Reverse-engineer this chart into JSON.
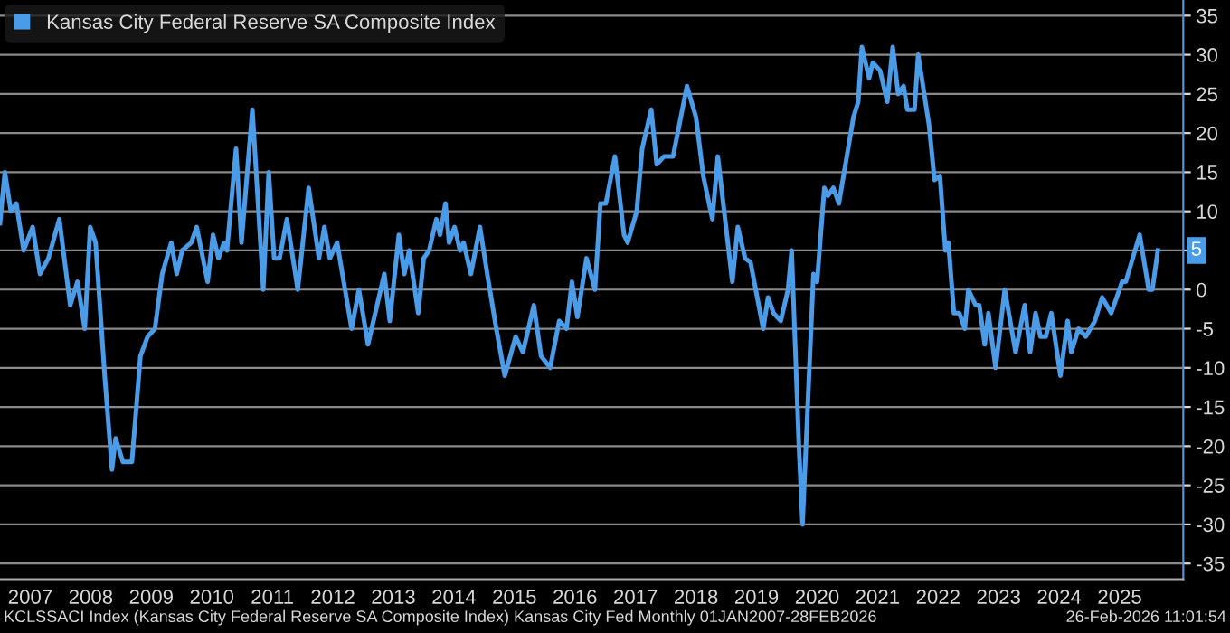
{
  "chart_data": {
    "type": "line",
    "x": [
      2007.0,
      2007.08,
      2007.18,
      2007.27,
      2007.39,
      2007.54,
      2007.66,
      2007.8,
      2007.98,
      2008.16,
      2008.28,
      2008.4,
      2008.49,
      2008.58,
      2008.73,
      2008.85,
      2008.91,
      2009.03,
      2009.18,
      2009.32,
      2009.44,
      2009.56,
      2009.68,
      2009.83,
      2009.92,
      2010.01,
      2010.16,
      2010.25,
      2010.43,
      2010.52,
      2010.61,
      2010.7,
      2010.75,
      2010.9,
      2010.99,
      2011.17,
      2011.35,
      2011.44,
      2011.53,
      2011.62,
      2011.74,
      2011.92,
      2012.1,
      2012.27,
      2012.36,
      2012.45,
      2012.57,
      2012.81,
      2012.93,
      2013.08,
      2013.23,
      2013.35,
      2013.44,
      2013.59,
      2013.68,
      2013.76,
      2013.91,
      2014.0,
      2014.09,
      2014.21,
      2014.27,
      2014.36,
      2014.42,
      2014.51,
      2014.6,
      2014.66,
      2014.78,
      2014.93,
      2015.05,
      2015.2,
      2015.34,
      2015.52,
      2015.64,
      2015.82,
      2015.94,
      2016.09,
      2016.24,
      2016.36,
      2016.45,
      2016.54,
      2016.69,
      2016.83,
      2016.92,
      2017.01,
      2017.16,
      2017.31,
      2017.37,
      2017.52,
      2017.61,
      2017.76,
      2017.85,
      2017.97,
      2018.12,
      2018.35,
      2018.5,
      2018.62,
      2018.77,
      2018.86,
      2018.98,
      2019.1,
      2019.19,
      2019.31,
      2019.4,
      2019.61,
      2019.69,
      2019.78,
      2019.9,
      2020.02,
      2020.08,
      2020.2,
      2020.26,
      2020.44,
      2020.5,
      2020.62,
      2020.68,
      2020.77,
      2020.86,
      2021.1,
      2021.18,
      2021.24,
      2021.36,
      2021.42,
      2021.54,
      2021.66,
      2021.75,
      2021.84,
      2021.93,
      2021.99,
      2022.11,
      2022.17,
      2022.35,
      2022.44,
      2022.53,
      2022.62,
      2022.67,
      2022.76,
      2022.85,
      2022.94,
      2023.0,
      2023.12,
      2023.18,
      2023.27,
      2023.33,
      2023.45,
      2023.6,
      2023.78,
      2023.93,
      2024.02,
      2024.11,
      2024.19,
      2024.28,
      2024.37,
      2024.52,
      2024.64,
      2024.7,
      2024.82,
      2024.94,
      2025.09,
      2025.21,
      2025.36,
      2025.54,
      2025.6,
      2025.83,
      2025.98,
      2026.04,
      2026.13
    ],
    "series": [
      {
        "name": "Kansas City Federal Reserve SA Composite Index",
        "color": "#4a9be8",
        "values": [
          8.5,
          15,
          10,
          11,
          5,
          8,
          2,
          4,
          9,
          -2,
          1,
          -5,
          8,
          6,
          -11,
          -23,
          -19,
          -22,
          -22,
          -8.5,
          -6,
          -5,
          2,
          6,
          2,
          5,
          6,
          8,
          1,
          7,
          4,
          6,
          5,
          18,
          6,
          23,
          0,
          15,
          4,
          4,
          9,
          0,
          13,
          4,
          8,
          4,
          6,
          -5,
          0,
          -7,
          -2,
          2,
          -4,
          7,
          2,
          5,
          -3,
          4,
          5,
          9,
          7,
          11,
          6,
          8,
          5,
          6,
          2,
          8,
          2,
          -5,
          -11,
          -6,
          -8,
          -2,
          -8.5,
          -10,
          -4,
          -5,
          1,
          -3.5,
          4,
          0,
          11,
          11,
          17,
          7,
          6,
          10,
          18,
          23,
          16,
          17,
          17,
          26,
          22,
          14.5,
          9,
          17,
          9,
          1,
          8,
          4,
          3.5,
          -5,
          -1,
          -3,
          -4,
          0,
          5,
          -20,
          -30,
          2,
          1,
          13,
          12,
          13,
          11,
          22,
          24,
          31,
          27,
          29,
          28,
          24,
          31,
          25,
          26,
          23,
          23,
          30,
          21,
          14,
          14.5,
          5,
          6,
          -3,
          -3,
          -5,
          0,
          -2,
          -2,
          -7,
          -3,
          -10,
          0,
          -8,
          -2,
          -8,
          -3,
          -6,
          -6,
          -3,
          -11,
          -4,
          -8,
          -5,
          -6,
          -4,
          -1,
          -3,
          1,
          1,
          7,
          0,
          0,
          5
        ]
      }
    ],
    "xlim": [
      2007.0,
      2026.55
    ],
    "ylim": [
      -37,
      37
    ],
    "xticks": [
      {
        "value": 2007.5,
        "label": "2007"
      },
      {
        "value": 2008.5,
        "label": "2008"
      },
      {
        "value": 2009.5,
        "label": "2009"
      },
      {
        "value": 2010.5,
        "label": "2010"
      },
      {
        "value": 2011.5,
        "label": "2011"
      },
      {
        "value": 2012.5,
        "label": "2012"
      },
      {
        "value": 2013.5,
        "label": "2013"
      },
      {
        "value": 2014.5,
        "label": "2014"
      },
      {
        "value": 2015.5,
        "label": "2015"
      },
      {
        "value": 2016.5,
        "label": "2016"
      },
      {
        "value": 2017.5,
        "label": "2017"
      },
      {
        "value": 2018.5,
        "label": "2018"
      },
      {
        "value": 2019.5,
        "label": "2019"
      },
      {
        "value": 2020.5,
        "label": "2020"
      },
      {
        "value": 2021.5,
        "label": "2021"
      },
      {
        "value": 2022.5,
        "label": "2022"
      },
      {
        "value": 2023.5,
        "label": "2023"
      },
      {
        "value": 2024.5,
        "label": "2024"
      },
      {
        "value": 2025.5,
        "label": "2025"
      }
    ],
    "yticks": [
      -35,
      -30,
      -25,
      -20,
      -15,
      -10,
      -5,
      0,
      5,
      10,
      15,
      20,
      25,
      30,
      35
    ],
    "grid": "y",
    "legend": "top left",
    "annotations": [
      "5",
      "KCLSSACI Index (Kansas City Federal Reserve SA Composite Index) Kansas City Fed Monthly 01JAN2007-28FEB2026",
      "26-Feb-2026 11:01:54"
    ]
  }
}
